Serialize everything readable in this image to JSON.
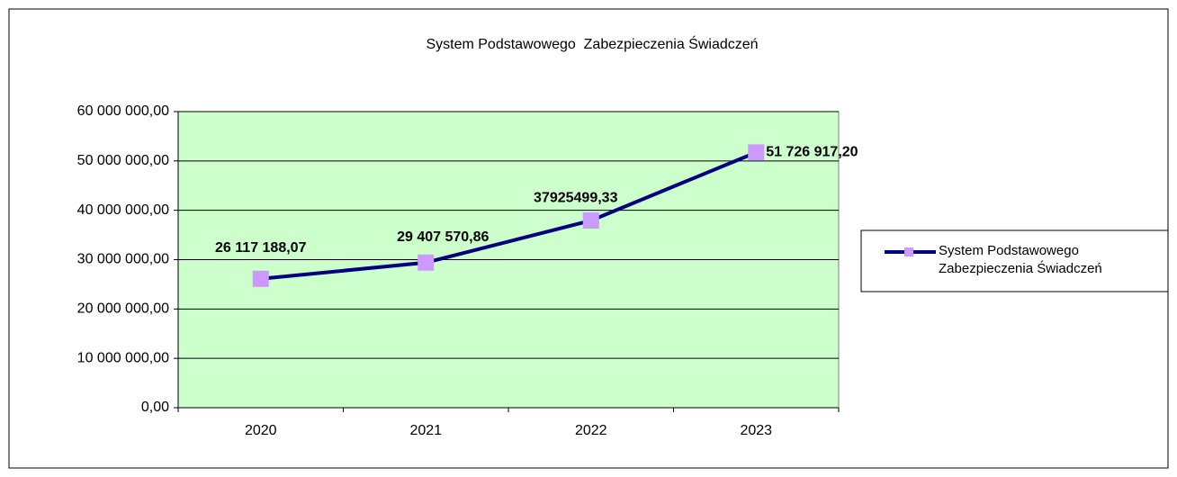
{
  "chart_data": {
    "type": "line",
    "title": "System Podstawowego  Zabezpieczenia Świadczeń",
    "categories": [
      "2020",
      "2021",
      "2022",
      "2023"
    ],
    "series": [
      {
        "name": "System Podstawowego Zabezpieczenia Świadczeń",
        "color": "#000080",
        "marker_color": "#cc99ff",
        "values": [
          26117188.07,
          29407570.86,
          37925499.33,
          51726917.2
        ],
        "value_labels": [
          "26 117 188,07",
          "29 407 570,86",
          "37925499,33",
          "51 726 917,20"
        ]
      }
    ],
    "ylim": [
      0,
      60000000
    ],
    "yticks": [
      {
        "value": 0,
        "label": "0,00"
      },
      {
        "value": 10000000,
        "label": "10 000 000,00"
      },
      {
        "value": 20000000,
        "label": "20 000 000,00"
      },
      {
        "value": 30000000,
        "label": "30 000 000,00"
      },
      {
        "value": 40000000,
        "label": "40 000 000,00"
      },
      {
        "value": 50000000,
        "label": "50 000 000,00"
      },
      {
        "value": 60000000,
        "label": "60 000 000,00"
      }
    ],
    "grid": true,
    "plot_background": "#ccffcc",
    "legend": "right"
  }
}
